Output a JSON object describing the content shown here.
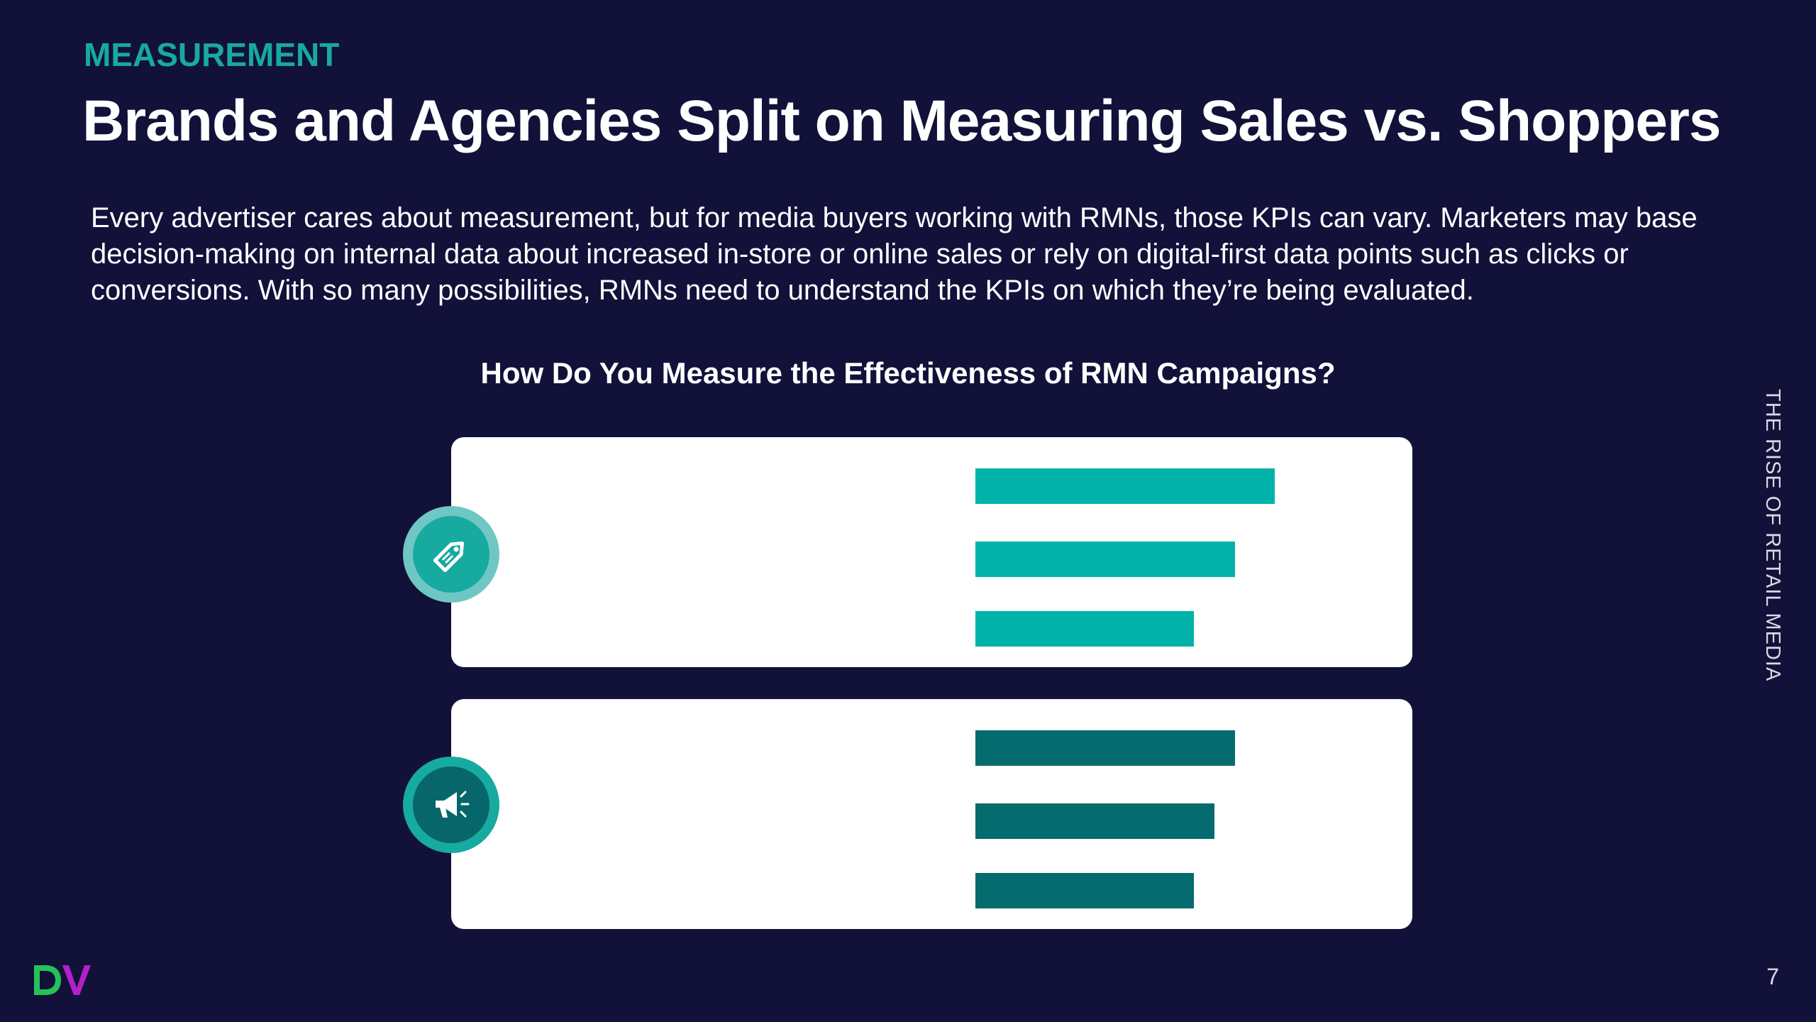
{
  "header": {
    "eyebrow": "MEASUREMENT",
    "title": "Brands and Agencies Split on Measuring Sales vs. Shoppers"
  },
  "intro": "Every advertiser cares about measurement, but for media buyers working with RMNs, those KPIs can vary. Marketers may base decision-making on internal data about increased in-store or online sales or rely on digital-first data points such as clicks or conversions. With so many possibilities, RMNs need to understand the KPIs on which they’re being evaluated.",
  "side_label": "THE RISE OF RETAIL MEDIA",
  "page_number": "7",
  "colors": {
    "background": "#12113a",
    "accent": "#17aaa0",
    "group1_bar": "#00b2a9",
    "group2_bar": "#046b6e",
    "logo_green": "#25c25a",
    "logo_purple": "#b51fc9"
  },
  "icons": {
    "group1": "price-tag-icon",
    "group2": "megaphone-icon"
  },
  "chart_data": {
    "type": "bar",
    "orientation": "horizontal",
    "title": "How Do You Measure the Effectiveness of RMN Campaigns?",
    "groups": [
      {
        "label": "",
        "icon": "price-tag-icon",
        "bars": [
          {
            "label": "",
            "value": 72
          },
          {
            "label": "",
            "value": 62.5
          },
          {
            "label": "",
            "value": 52.5
          }
        ]
      },
      {
        "label": "",
        "icon": "megaphone-icon",
        "bars": [
          {
            "label": "",
            "value": 62.5
          },
          {
            "label": "",
            "value": 57.5
          },
          {
            "label": "",
            "value": 52.5
          }
        ]
      }
    ],
    "xlim": [
      0,
      100
    ],
    "grid": false,
    "legend": "none"
  }
}
